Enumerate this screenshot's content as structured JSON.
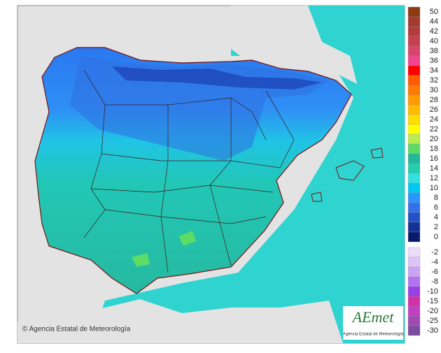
{
  "legend": {
    "positive": [
      {
        "label": 50,
        "color": "#8b3a12"
      },
      {
        "label": 44,
        "color": "#a33a2e"
      },
      {
        "label": 42,
        "color": "#b23c3c"
      },
      {
        "label": 40,
        "color": "#c4404e"
      },
      {
        "label": 38,
        "color": "#d6456a"
      },
      {
        "label": 36,
        "color": "#f0458e"
      },
      {
        "label": 34,
        "color": "#ff0000"
      },
      {
        "label": 32,
        "color": "#ff5a00"
      },
      {
        "label": 30,
        "color": "#ff7a00"
      },
      {
        "label": 28,
        "color": "#ff9a00"
      },
      {
        "label": 26,
        "color": "#ffbb00"
      },
      {
        "label": 24,
        "color": "#ffdd00"
      },
      {
        "label": 22,
        "color": "#ffff00"
      },
      {
        "label": 20,
        "color": "#b8ec50"
      },
      {
        "label": 18,
        "color": "#5cdc64"
      },
      {
        "label": 16,
        "color": "#22b89a"
      },
      {
        "label": 14,
        "color": "#25cfae"
      },
      {
        "label": 12,
        "color": "#33e0e0"
      },
      {
        "label": 10,
        "color": "#00c8f0"
      },
      {
        "label": 8,
        "color": "#2a94ff"
      },
      {
        "label": 6,
        "color": "#3470e8"
      },
      {
        "label": 4,
        "color": "#2450c8"
      },
      {
        "label": 2,
        "color": "#143296"
      },
      {
        "label": 0,
        "color": "#0a1a6a"
      }
    ],
    "negative": [
      {
        "label": -2,
        "color": "#ecdcfa"
      },
      {
        "label": -4,
        "color": "#dcc4f4"
      },
      {
        "label": -6,
        "color": "#c8a4f2"
      },
      {
        "label": -8,
        "color": "#b274f0"
      },
      {
        "label": -10,
        "color": "#9840e2"
      },
      {
        "label": -15,
        "color": "#d030a8"
      },
      {
        "label": -20,
        "color": "#c040c0"
      },
      {
        "label": -25,
        "color": "#a24ab4"
      },
      {
        "label": -30,
        "color": "#7e4c9e"
      }
    ]
  },
  "credit": "© Agencia Estatal de Meteorología",
  "logo": {
    "text": "AEmet",
    "subtitle": "Agencia Estatal de Meteorología"
  }
}
